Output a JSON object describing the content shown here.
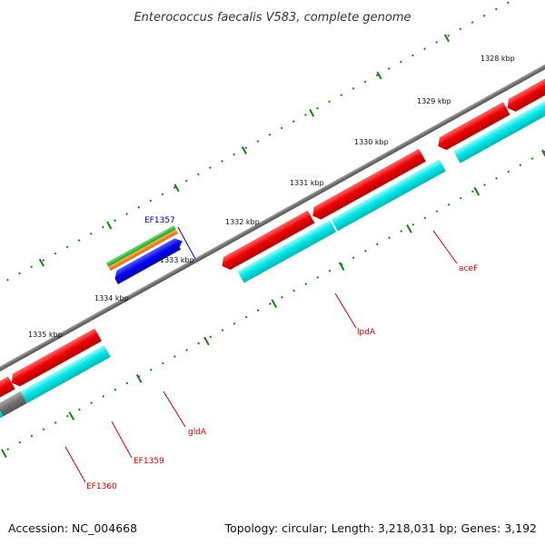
{
  "title": "Enterococcus faecalis V583, complete genome",
  "ticks": [
    "1328 kbp",
    "1329 kbp",
    "1330 kbp",
    "1331 kbp",
    "1332 kbp",
    "1333 kbp",
    "1334 kbp",
    "1335 kbp"
  ],
  "genes": {
    "ef1357": "EF1357",
    "acef": "aceF",
    "lpda": "lpdA",
    "glda": "gldA",
    "ef1359": "EF1359",
    "ef1360": "EF1360"
  },
  "colors": {
    "red_gene": "#ee0000",
    "cyan_gene": "#00e5e5",
    "gray_backbone": "#707070",
    "tick": "#1a7a1a",
    "feature_green": "#33bb33",
    "feature_orange": "#ff8800",
    "feature_blue": "#0000ee"
  },
  "footer": {
    "accession": "Accession: NC_004668",
    "topology": "Topology: circular; Length: 3,218,031 bp; Genes: 3,192"
  }
}
